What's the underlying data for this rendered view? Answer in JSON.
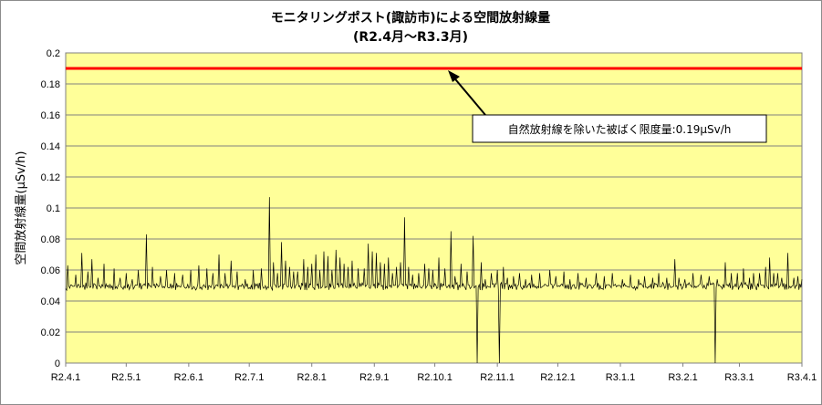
{
  "chart_data": {
    "type": "line",
    "title": "モニタリングポスト(諏訪市)による空間放射線量",
    "subtitle": "(R2.4月～R3.3月)",
    "ylabel": "空間放射線量(µSv/h)",
    "xlabel": "",
    "ylim": [
      0,
      0.2
    ],
    "yticks": [
      "0",
      "0.02",
      "0.04",
      "0.06",
      "0.08",
      "0.1",
      "0.12",
      "0.14",
      "0.16",
      "0.18",
      "0.2"
    ],
    "xtick_labels": [
      "R2.4.1",
      "R2.5.1",
      "R2.6.1",
      "R2.7.1",
      "R2.8.1",
      "R2.9.1",
      "R2.10.1",
      "R2.11.1",
      "R2.12.1",
      "R3.1.1",
      "R3.2.1",
      "R3.3.1",
      "R3.4.1"
    ],
    "x_month_days": [
      30,
      31,
      30,
      31,
      31,
      30,
      31,
      30,
      31,
      31,
      28,
      31
    ],
    "grid": true,
    "series": [
      {
        "name": "空間放射線量",
        "color": "#000000",
        "baseline": 0.05,
        "spikes": [
          [
            1,
            0.063
          ],
          [
            5,
            0.057
          ],
          [
            8,
            0.071
          ],
          [
            11,
            0.059
          ],
          [
            13,
            0.067
          ],
          [
            16,
            0.055
          ],
          [
            19,
            0.064
          ],
          [
            24,
            0.061
          ],
          [
            27,
            0.055
          ],
          [
            30,
            0.058
          ],
          [
            33,
            0.054
          ],
          [
            36,
            0.06
          ],
          [
            40,
            0.083
          ],
          [
            43,
            0.062
          ],
          [
            47,
            0.056
          ],
          [
            50,
            0.06
          ],
          [
            54,
            0.058
          ],
          [
            58,
            0.057
          ],
          [
            62,
            0.06
          ],
          [
            66,
            0.063
          ],
          [
            70,
            0.061
          ],
          [
            73,
            0.058
          ],
          [
            76,
            0.07
          ],
          [
            79,
            0.058
          ],
          [
            82,
            0.066
          ],
          [
            85,
            0.059
          ],
          [
            89,
            0.054
          ],
          [
            93,
            0.06
          ],
          [
            97,
            0.061
          ],
          [
            101,
            0.107
          ],
          [
            103,
            0.065
          ],
          [
            105,
            0.058
          ],
          [
            107,
            0.078
          ],
          [
            109,
            0.066
          ],
          [
            111,
            0.062
          ],
          [
            113,
            0.059
          ],
          [
            115,
            0.059
          ],
          [
            118,
            0.067
          ],
          [
            120,
            0.062
          ],
          [
            122,
            0.064
          ],
          [
            124,
            0.07
          ],
          [
            126,
            0.06
          ],
          [
            128,
            0.072
          ],
          [
            130,
            0.069
          ],
          [
            132,
            0.06
          ],
          [
            134,
            0.073
          ],
          [
            136,
            0.068
          ],
          [
            138,
            0.064
          ],
          [
            140,
            0.062
          ],
          [
            142,
            0.066
          ],
          [
            145,
            0.061
          ],
          [
            148,
            0.061
          ],
          [
            150,
            0.077
          ],
          [
            152,
            0.072
          ],
          [
            154,
            0.071
          ],
          [
            156,
            0.065
          ],
          [
            158,
            0.064
          ],
          [
            160,
            0.068
          ],
          [
            162,
            0.058
          ],
          [
            164,
            0.062
          ],
          [
            166,
            0.065
          ],
          [
            168,
            0.094
          ],
          [
            170,
            0.062
          ],
          [
            172,
            0.057
          ],
          [
            175,
            0.058
          ],
          [
            178,
            0.064
          ],
          [
            180,
            0.061
          ],
          [
            182,
            0.06
          ],
          [
            185,
            0.068
          ],
          [
            188,
            0.061
          ],
          [
            191,
            0.085
          ],
          [
            193,
            0.056
          ],
          [
            196,
            0.064
          ],
          [
            199,
            0.059
          ],
          [
            202,
            0.082
          ],
          [
            204,
            0.077
          ],
          [
            206,
            0.065
          ],
          [
            208,
            0.054
          ],
          [
            211,
            0.058
          ],
          [
            214,
            0.06
          ],
          [
            217,
            0.062
          ],
          [
            219,
            0.055
          ],
          [
            222,
            0.056
          ],
          [
            225,
            0.058
          ],
          [
            228,
            0.054
          ],
          [
            231,
            0.057
          ],
          [
            235,
            0.058
          ],
          [
            240,
            0.06
          ],
          [
            243,
            0.056
          ],
          [
            247,
            0.059
          ],
          [
            250,
            0.054
          ],
          [
            254,
            0.058
          ],
          [
            258,
            0.055
          ],
          [
            263,
            0.058
          ],
          [
            267,
            0.056
          ],
          [
            271,
            0.058
          ],
          [
            276,
            0.054
          ],
          [
            280,
            0.057
          ],
          [
            284,
            0.054
          ],
          [
            287,
            0.056
          ],
          [
            291,
            0.055
          ],
          [
            294,
            0.058
          ],
          [
            298,
            0.055
          ],
          [
            302,
            0.067
          ],
          [
            304,
            0.055
          ],
          [
            307,
            0.054
          ],
          [
            311,
            0.058
          ],
          [
            315,
            0.057
          ],
          [
            319,
            0.056
          ],
          [
            323,
            0.054
          ],
          [
            327,
            0.065
          ],
          [
            330,
            0.058
          ],
          [
            333,
            0.058
          ],
          [
            336,
            0.061
          ],
          [
            339,
            0.055
          ],
          [
            341,
            0.058
          ],
          [
            344,
            0.058
          ],
          [
            347,
            0.062
          ],
          [
            349,
            0.068
          ],
          [
            351,
            0.058
          ],
          [
            353,
            0.058
          ],
          [
            355,
            0.055
          ],
          [
            358,
            0.071
          ],
          [
            361,
            0.055
          ],
          [
            363,
            0.056
          ],
          [
            365,
            0.054
          ]
        ],
        "dips": [
          [
            204,
            0.0
          ],
          [
            215,
            0.0
          ],
          [
            322,
            0.0
          ]
        ]
      }
    ],
    "reference_line": {
      "value": 0.19,
      "color": "#ff0000"
    },
    "annotation": {
      "text": "自然放射線を除いた被ばく限度量:0.19μSv/h",
      "target_value": 0.19
    },
    "plot_background": "#ffff99"
  }
}
